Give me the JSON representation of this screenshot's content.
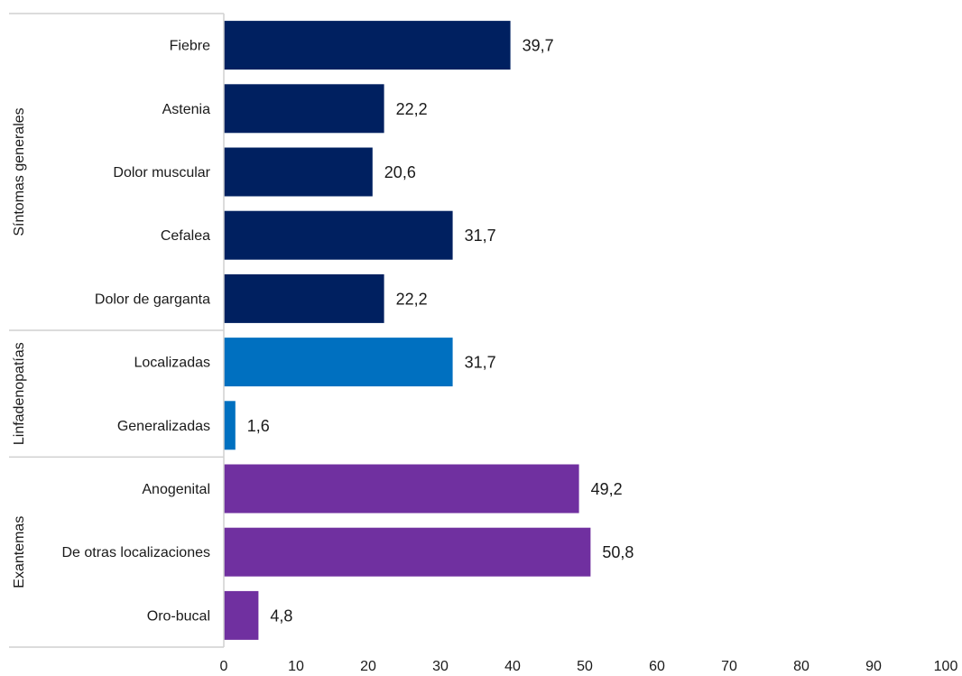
{
  "chart_data": {
    "type": "bar",
    "orientation": "horizontal",
    "xlim": [
      0,
      100
    ],
    "xticks": [
      0,
      10,
      20,
      30,
      40,
      50,
      60,
      70,
      80,
      90,
      100
    ],
    "grid": false,
    "groups": [
      {
        "name": "Síntomas generales",
        "color": "#002060",
        "categories": [
          "Fiebre",
          "Astenia",
          "Dolor muscular",
          "Cefalea",
          "Dolor de garganta"
        ],
        "values": [
          39.7,
          22.2,
          20.6,
          31.7,
          22.2
        ],
        "labels": [
          "39,7",
          "22,2",
          "20,6",
          "31,7",
          "22,2"
        ]
      },
      {
        "name": "Linfadenopatías",
        "color": "#0070C0",
        "categories": [
          "Localizadas",
          "Generalizadas"
        ],
        "values": [
          31.7,
          1.6
        ],
        "labels": [
          "31,7",
          "1,6"
        ]
      },
      {
        "name": "Exantemas",
        "color": "#7030A0",
        "categories": [
          "Anogenital",
          "De otras localizaciones",
          "Oro-bucal"
        ],
        "values": [
          49.2,
          50.8,
          4.8
        ],
        "labels": [
          "49,2",
          "50,8",
          "4,8"
        ]
      }
    ]
  }
}
